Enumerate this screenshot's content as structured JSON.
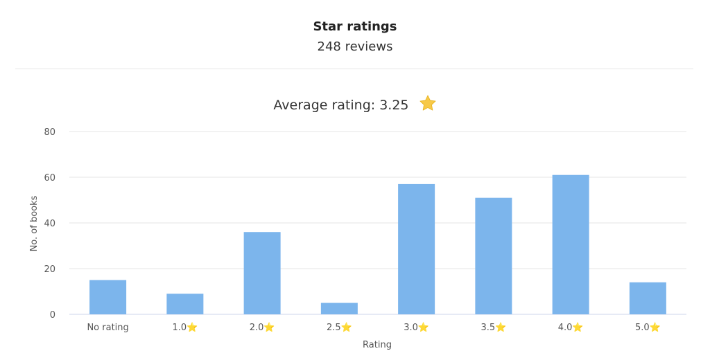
{
  "header": {
    "title": "Star ratings",
    "subtitle": "248 reviews"
  },
  "average": {
    "text": "Average rating: 3.25",
    "icon": "star-icon"
  },
  "chart_data": {
    "type": "bar",
    "categories": [
      "No rating",
      "1.0⭐",
      "2.0⭐",
      "2.5⭐",
      "3.0⭐",
      "3.5⭐",
      "4.0⭐",
      "5.0⭐"
    ],
    "values": [
      15,
      9,
      36,
      5,
      57,
      51,
      61,
      14
    ],
    "xlabel": "Rating",
    "ylabel": "No. of books",
    "ylim": [
      0,
      80
    ],
    "yticks": [
      0,
      20,
      40,
      60,
      80
    ],
    "grid": true,
    "bar_color": "#7cb5ec"
  },
  "colors": {
    "bar": "#7cb5ec",
    "grid": "#e6e6e6",
    "star": "#f7c948"
  }
}
